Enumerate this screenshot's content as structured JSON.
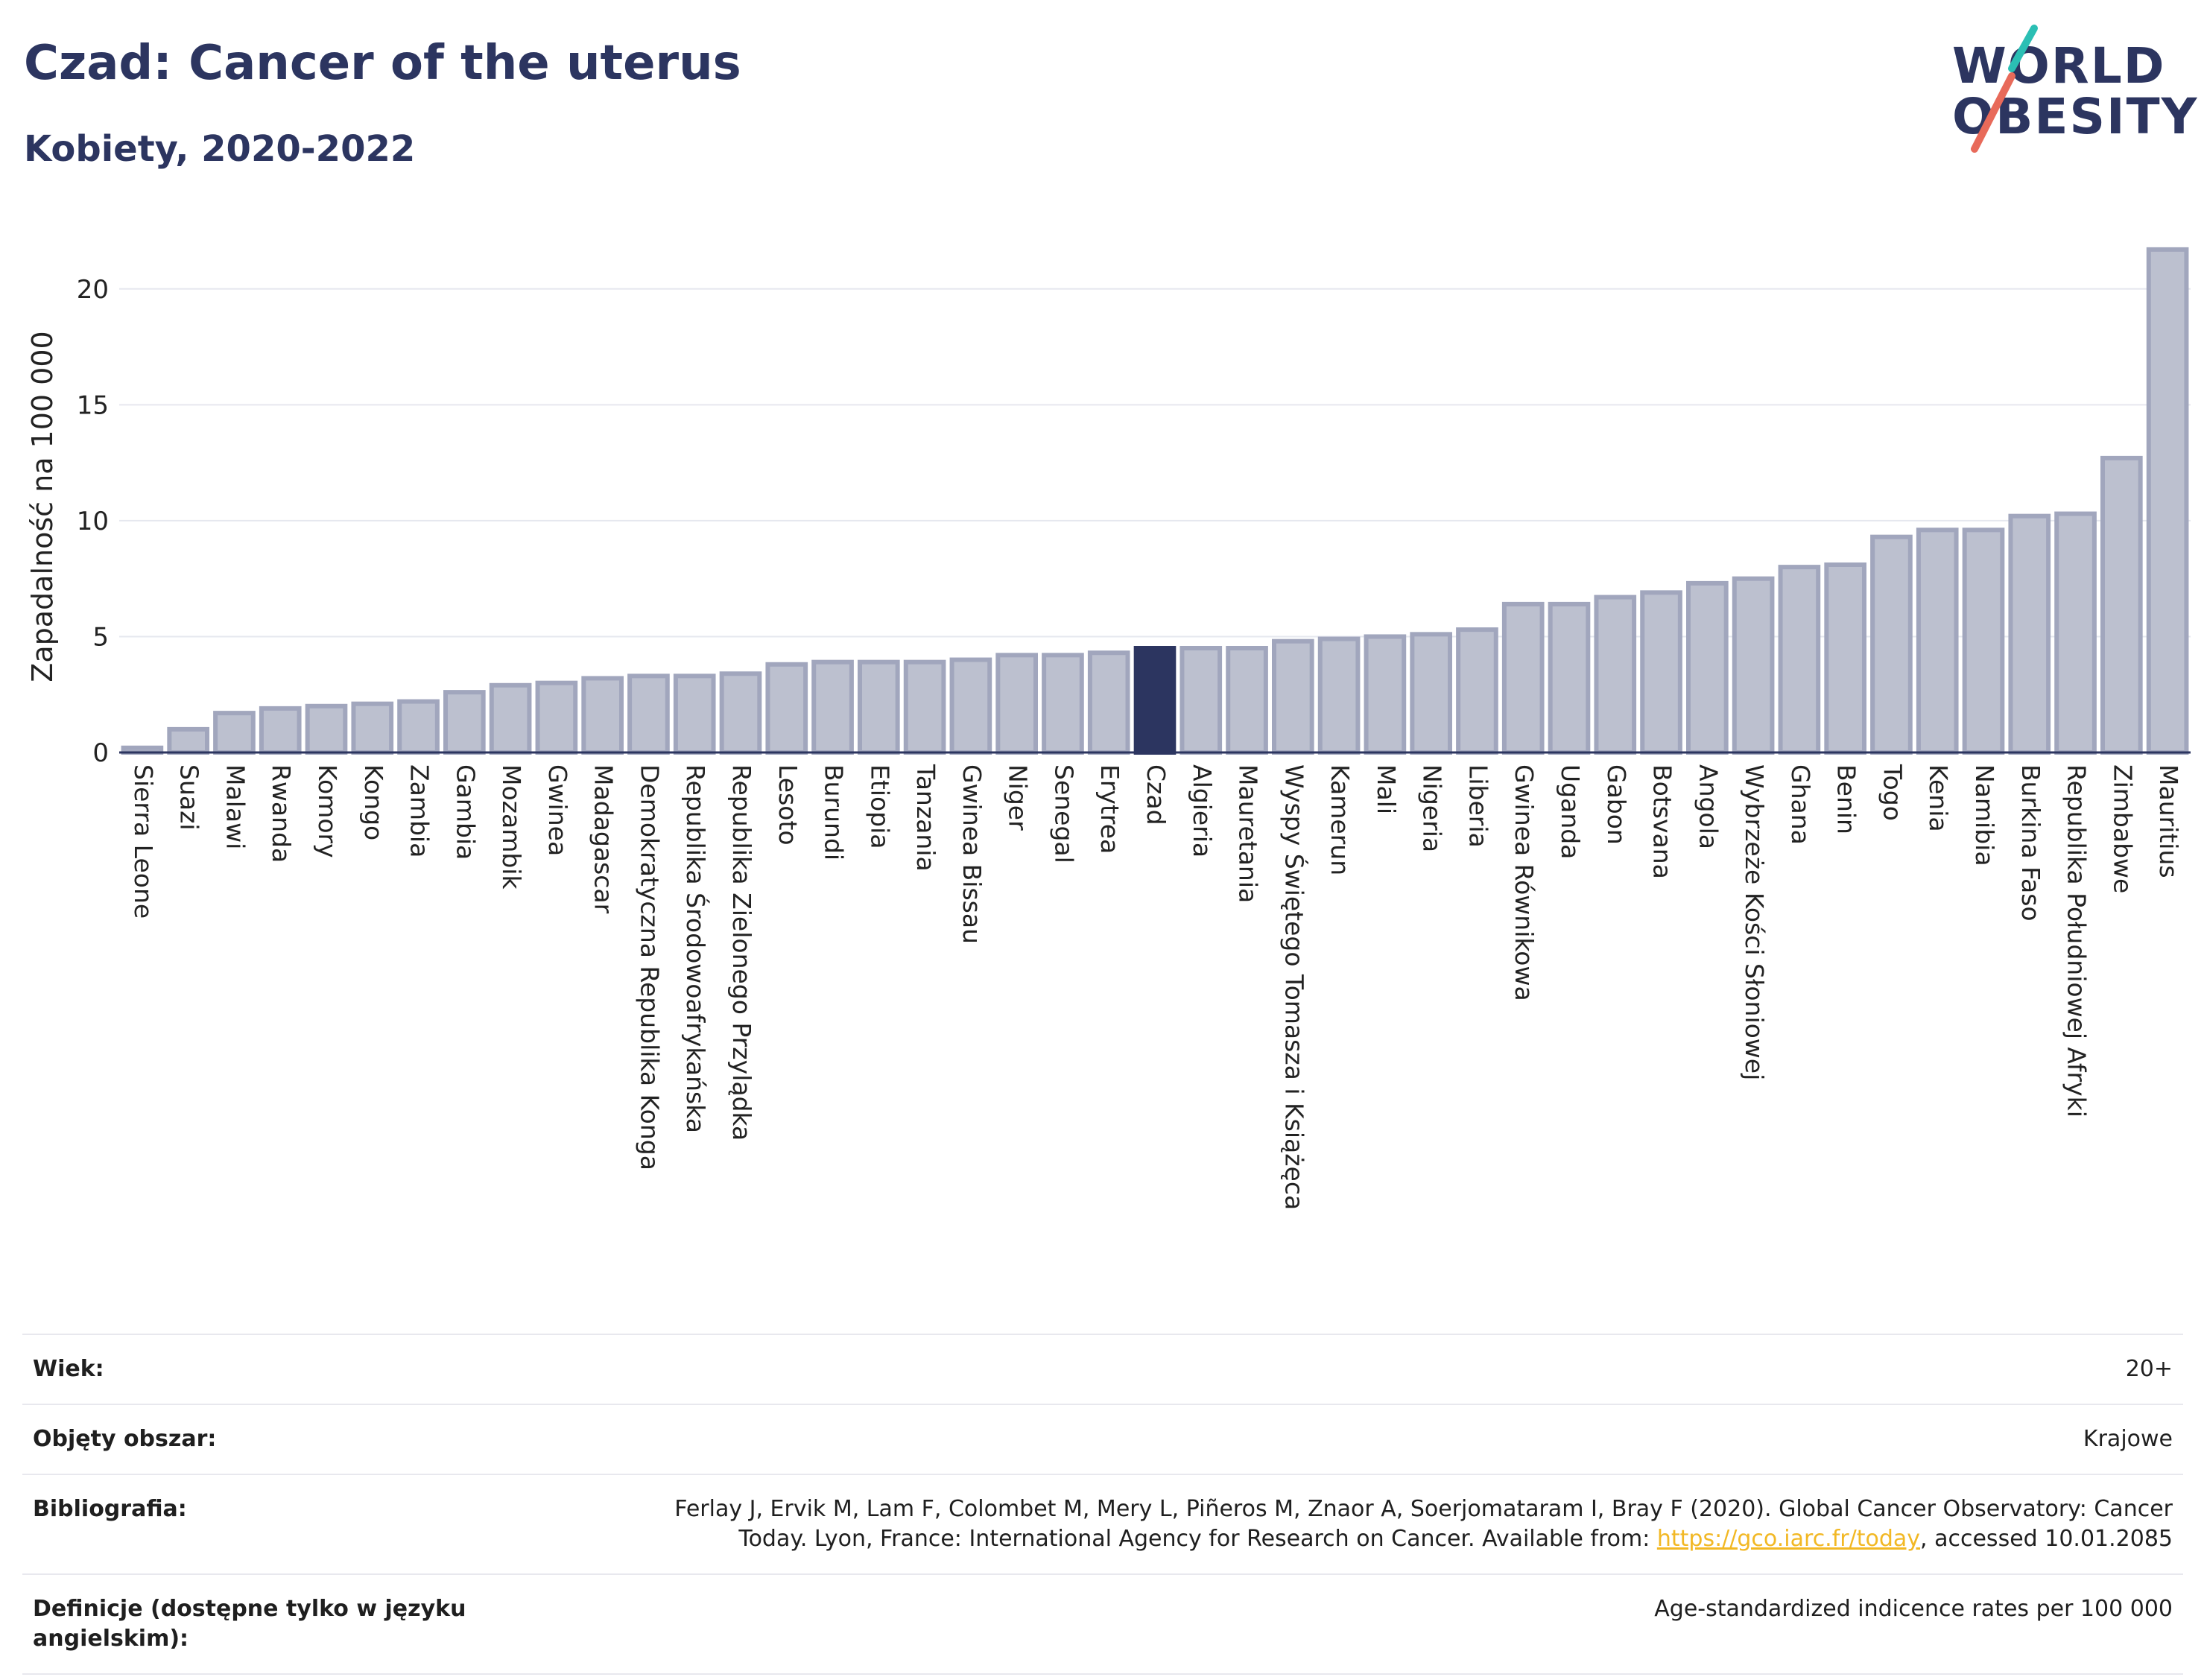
{
  "header": {
    "title": "Czad: Cancer of the uterus",
    "subtitle": "Kobiety, 2020-2022"
  },
  "logo": {
    "line1": "WORLD",
    "line2": "OBESITY",
    "colors": {
      "text": "#2c3560",
      "teal": "#2bbfb4",
      "coral": "#e86a5a"
    }
  },
  "chart_data": {
    "type": "bar",
    "ylabel": "Zapadalność na 100 000",
    "xlabel": "",
    "ylim": [
      0,
      22.5
    ],
    "yticks": [
      0,
      5,
      10,
      15,
      20
    ],
    "grid": true,
    "highlight": "Czad",
    "colors": {
      "bar": "#bcc0cf",
      "bar_edge": "#a1a6bd",
      "highlight": "#2c3560",
      "grid": "#e6e8ef",
      "axis": "#2c3560"
    },
    "categories": [
      "Sierra Leone",
      "Suazi",
      "Malawi",
      "Rwanda",
      "Komory",
      "Kongo",
      "Zambia",
      "Gambia",
      "Mozambik",
      "Gwinea",
      "Madagascar",
      "Demokratyczna Republika Konga",
      "Republika Środowoafrykańska",
      "Republika Zielonego Przylądka",
      "Lesoto",
      "Burundi",
      "Etiopia",
      "Tanzania",
      "Gwinea Bissau",
      "Niger",
      "Senegal",
      "Erytrea",
      "Czad",
      "Algieria",
      "Mauretania",
      "Wyspy Świętego Tomasza i Książęca",
      "Kamerun",
      "Mali",
      "Nigeria",
      "Liberia",
      "Gwinea Równikowa",
      "Uganda",
      "Gabon",
      "Botsvana",
      "Angola",
      "Wybrzeże Kości Słoniowej",
      "Ghana",
      "Benin",
      "Togo",
      "Kenia",
      "Namibia",
      "Burkina Faso",
      "Republika Południowej Afryki",
      "Zimbabwe",
      "Mauritius"
    ],
    "values": [
      0.2,
      1.0,
      1.7,
      1.9,
      2.0,
      2.1,
      2.2,
      2.6,
      2.9,
      3.0,
      3.2,
      3.3,
      3.3,
      3.4,
      3.8,
      3.9,
      3.9,
      3.9,
      4.0,
      4.2,
      4.2,
      4.3,
      4.5,
      4.5,
      4.5,
      4.8,
      4.9,
      5.0,
      5.1,
      5.3,
      6.4,
      6.4,
      6.7,
      6.9,
      7.3,
      7.5,
      8.0,
      8.1,
      9.3,
      9.6,
      9.6,
      10.2,
      10.3,
      12.7,
      21.7
    ]
  },
  "info": {
    "rows": [
      {
        "label": "Wiek:",
        "value": "20+"
      },
      {
        "label": "Objęty obszar:",
        "value": "Krajowe"
      },
      {
        "label": "Bibliografia:",
        "value_line1": "Ferlay J, Ervik M, Lam F, Colombet M, Mery L, Piñeros M, Znaor A, Soerjomataram I, Bray F (2020). Global Cancer Observatory: Cancer",
        "value_line2_pre": "Today. Lyon, France: International Agency for Research on Cancer. Available from: ",
        "link": "https://gco.iarc.fr/today",
        "value_line2_post": ", accessed 10.01.2085"
      },
      {
        "label": "Definicje (dostępne tylko w języku angielskim):",
        "value": "Age-standardized indicence rates per 100 000"
      }
    ]
  }
}
